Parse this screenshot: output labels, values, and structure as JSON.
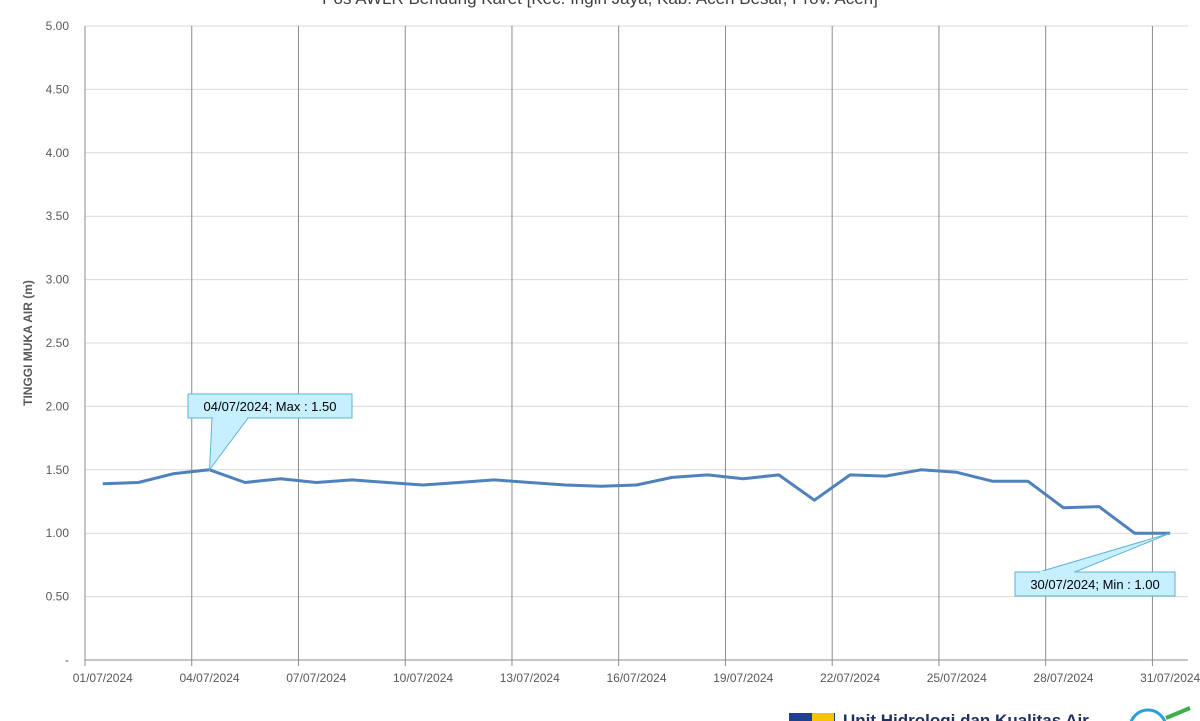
{
  "chart_data": {
    "type": "line",
    "title": "Pos AWLR Bendung Karet [Kec. Ingin Jaya, Kab. Aceh Besar, Prov. Aceh]",
    "y_label": "TINGGI MUKA AIR (m)",
    "categories": [
      "01/07/2024",
      null,
      null,
      "04/07/2024",
      null,
      null,
      "07/07/2024",
      null,
      null,
      "10/07/2024",
      null,
      null,
      "13/07/2024",
      null,
      null,
      "16/07/2024",
      null,
      null,
      "19/07/2024",
      null,
      null,
      "22/07/2024",
      null,
      null,
      "25/07/2024",
      null,
      null,
      "28/07/2024",
      null,
      null,
      "31/07/2024"
    ],
    "series": [
      {
        "name": "Tinggi Muka Air",
        "color": "#4f81bd",
        "values": [
          1.39,
          1.4,
          1.47,
          1.5,
          1.4,
          1.43,
          1.4,
          1.42,
          1.4,
          1.38,
          1.4,
          1.42,
          1.4,
          1.38,
          1.37,
          1.38,
          1.44,
          1.46,
          1.43,
          1.46,
          1.26,
          1.46,
          1.45,
          1.5,
          1.48,
          1.41,
          1.41,
          1.2,
          1.21,
          1.0,
          1.0
        ]
      }
    ],
    "ylim": [
      0,
      5
    ],
    "yticks": [
      {
        "value": 0,
        "label": "-"
      },
      {
        "value": 0.5,
        "label": "0.50"
      },
      {
        "value": 1,
        "label": "1.00"
      },
      {
        "value": 1.5,
        "label": "1.50"
      },
      {
        "value": 2,
        "label": "2.00"
      },
      {
        "value": 2.5,
        "label": "2.50"
      },
      {
        "value": 3,
        "label": "3.00"
      },
      {
        "value": 3.5,
        "label": "3.50"
      },
      {
        "value": 4,
        "label": "4.00"
      },
      {
        "value": 4.5,
        "label": "4.50"
      },
      {
        "value": 5,
        "label": "5.00"
      }
    ],
    "grid": true,
    "annotations": [
      {
        "text": "04/07/2024; Max : 1.50"
      },
      {
        "text": "30/07/2024; Min : 1.00"
      }
    ],
    "footer": "Unit Hidrologi dan Kualitas Air"
  }
}
